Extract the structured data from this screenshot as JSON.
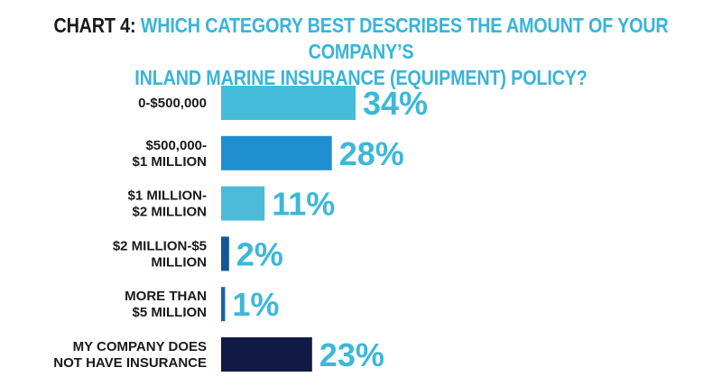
{
  "title": {
    "prefix": "CHART 4:",
    "question_line1": "WHICH CATEGORY BEST DESCRIBES THE AMOUNT OF YOUR COMPANY’S",
    "question_line2": "INLAND MARINE INSURANCE (EQUIPMENT) POLICY?"
  },
  "chart_data": {
    "type": "bar",
    "orientation": "horizontal",
    "categories": [
      [
        "0-$500,000"
      ],
      [
        "$500,000-",
        "$1 MILLION"
      ],
      [
        "$1 MILLION-",
        "$2 MILLION"
      ],
      [
        "$2 MILLION-$5",
        "MILLION"
      ],
      [
        "MORE THAN",
        "$5 MILLION"
      ],
      [
        "MY COMPANY DOES",
        "NOT HAVE INSURANCE"
      ]
    ],
    "values": [
      34,
      28,
      11,
      2,
      1,
      23
    ],
    "value_labels": [
      "34%",
      "28%",
      "11%",
      "2%",
      "1%",
      "23%"
    ],
    "bar_colors": [
      "#45bcd9",
      "#1f8fd0",
      "#4cbbd9",
      "#125793",
      "#1b61a9",
      "#101a45"
    ],
    "value_label_color": "#3cb8d9",
    "unit": "%",
    "xlim": [
      0,
      34
    ],
    "grid": false,
    "legend": "none"
  }
}
